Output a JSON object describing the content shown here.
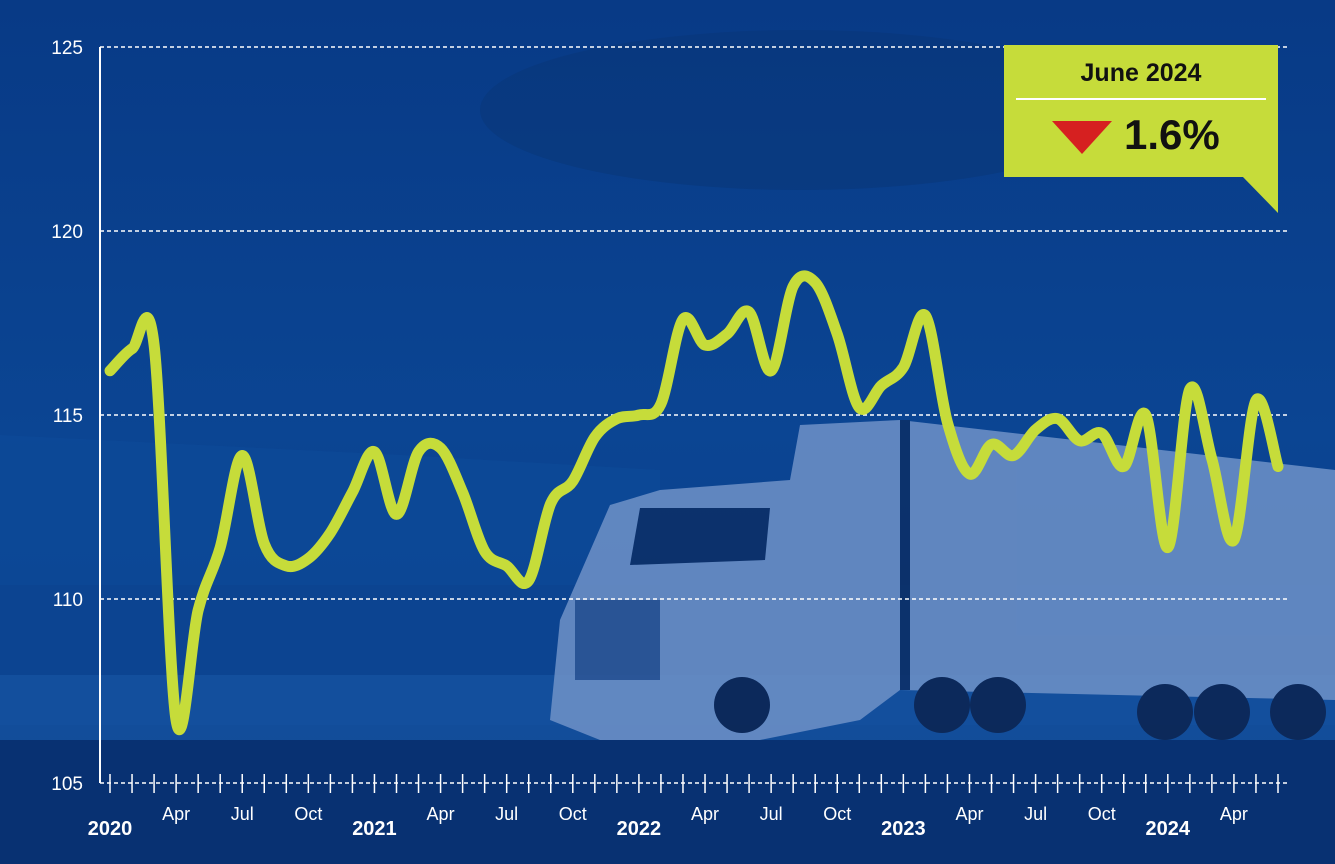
{
  "callout": {
    "title": "June 2024",
    "direction": "down",
    "value": "1.6%",
    "arrow_color": "#d62020",
    "background_color": "#c6dc3a"
  },
  "colors": {
    "background": "#0a3f8c",
    "line": "#c6dc3a",
    "grid": "#ffffff",
    "text": "#ffffff"
  },
  "chart_data": {
    "type": "line",
    "title": "",
    "xlabel": "",
    "ylabel": "",
    "ylim": [
      105,
      125
    ],
    "yticks": [
      105,
      110,
      115,
      120,
      125
    ],
    "grid": true,
    "x_tick_labels": [
      {
        "index": 0,
        "label": "2020",
        "kind": "year"
      },
      {
        "index": 3,
        "label": "Apr",
        "kind": "month"
      },
      {
        "index": 6,
        "label": "Jul",
        "kind": "month"
      },
      {
        "index": 9,
        "label": "Oct",
        "kind": "month"
      },
      {
        "index": 12,
        "label": "2021",
        "kind": "year"
      },
      {
        "index": 15,
        "label": "Apr",
        "kind": "month"
      },
      {
        "index": 18,
        "label": "Jul",
        "kind": "month"
      },
      {
        "index": 21,
        "label": "Oct",
        "kind": "month"
      },
      {
        "index": 24,
        "label": "2022",
        "kind": "year"
      },
      {
        "index": 27,
        "label": "Apr",
        "kind": "month"
      },
      {
        "index": 30,
        "label": "Jul",
        "kind": "month"
      },
      {
        "index": 33,
        "label": "Oct",
        "kind": "month"
      },
      {
        "index": 36,
        "label": "2023",
        "kind": "year"
      },
      {
        "index": 39,
        "label": "Apr",
        "kind": "month"
      },
      {
        "index": 42,
        "label": "Jul",
        "kind": "month"
      },
      {
        "index": 45,
        "label": "Oct",
        "kind": "month"
      },
      {
        "index": 48,
        "label": "2024",
        "kind": "year"
      },
      {
        "index": 51,
        "label": "Apr",
        "kind": "month"
      }
    ],
    "series": [
      {
        "x_start": "2020-01",
        "x_end": "2024-06",
        "values": [
          116.2,
          116.8,
          116.9,
          106.7,
          109.7,
          111.4,
          113.9,
          111.5,
          110.9,
          111.1,
          111.8,
          112.9,
          114.0,
          112.3,
          114.0,
          114.1,
          112.9,
          111.3,
          110.9,
          110.5,
          112.6,
          113.2,
          114.4,
          114.9,
          115.0,
          115.3,
          117.6,
          116.9,
          117.2,
          117.8,
          116.2,
          118.5,
          118.6,
          117.2,
          115.2,
          115.8,
          116.3,
          117.7,
          114.8,
          113.4,
          114.2,
          113.9,
          114.6,
          114.9,
          114.3,
          114.5,
          113.6,
          115.0,
          111.4,
          115.7,
          113.8,
          111.6,
          115.4,
          113.6
        ]
      }
    ]
  }
}
